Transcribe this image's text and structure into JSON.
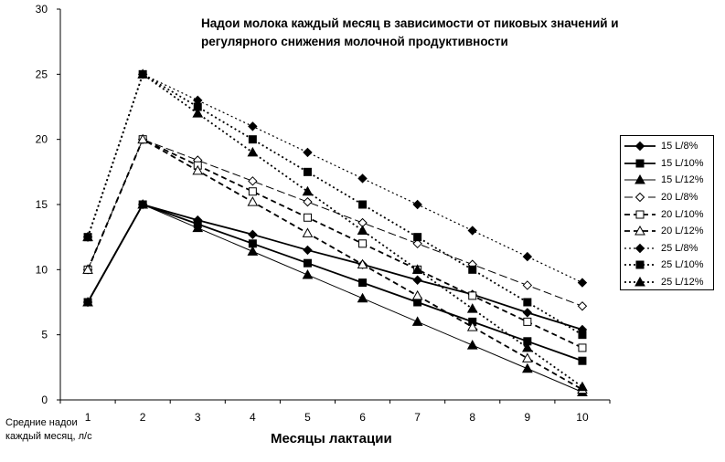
{
  "chart_data": {
    "type": "line",
    "title_lines": [
      "Надои молока каждый месяц в зависимости от пиковых значений и",
      "регулярного снижения молочной продуктивности"
    ],
    "xlabel": "Месяцы лактации",
    "ylabel_lines": [
      "Средние надои",
      "каждый месяц, л/с"
    ],
    "x": [
      1,
      2,
      3,
      4,
      5,
      6,
      7,
      8,
      9,
      10
    ],
    "xticks": [
      "1",
      "2",
      "3",
      "4",
      "5",
      "6",
      "7",
      "8",
      "9",
      "10"
    ],
    "ylim": [
      0,
      30
    ],
    "yticks": [
      "0",
      "5",
      "10",
      "15",
      "20",
      "25",
      "30"
    ],
    "grid": false,
    "legend_position": "right",
    "series": [
      {
        "name": "15 L/8%",
        "marker": "diamond",
        "filled": true,
        "line": "solid",
        "width": 1.8,
        "values": [
          7.5,
          15,
          13.8,
          12.7,
          11.5,
          10.4,
          9.2,
          8.1,
          6.7,
          5.4
        ]
      },
      {
        "name": "15 L/10%",
        "marker": "square",
        "filled": true,
        "line": "solid",
        "width": 1.8,
        "values": [
          7.5,
          15,
          13.5,
          12.0,
          10.5,
          9.0,
          7.5,
          6.0,
          4.5,
          3.0
        ]
      },
      {
        "name": "15 L/12%",
        "marker": "triangle",
        "filled": true,
        "line": "solid",
        "width": 1.0,
        "values": [
          7.5,
          15,
          13.2,
          11.4,
          9.6,
          7.8,
          6.0,
          4.2,
          2.4,
          0.6
        ]
      },
      {
        "name": "20 L/8%",
        "marker": "diamond",
        "filled": false,
        "line": "longdash",
        "width": 1.0,
        "values": [
          10,
          20,
          18.4,
          16.8,
          15.2,
          13.6,
          12.0,
          10.4,
          8.8,
          7.2
        ]
      },
      {
        "name": "20 L/10%",
        "marker": "square",
        "filled": false,
        "line": "dash",
        "width": 1.8,
        "values": [
          10,
          20,
          18,
          16,
          14,
          12,
          10,
          8,
          6,
          4
        ]
      },
      {
        "name": "20 L/12%",
        "marker": "triangle",
        "filled": false,
        "line": "dash",
        "width": 1.8,
        "values": [
          10,
          20,
          17.6,
          15.2,
          12.8,
          10.4,
          8.0,
          5.6,
          3.2,
          0.8
        ]
      },
      {
        "name": "25 L/8%",
        "marker": "diamond",
        "filled": true,
        "line": "dot",
        "width": 1.2,
        "values": [
          12.5,
          25,
          23,
          21,
          19,
          17,
          15,
          13,
          11,
          9
        ]
      },
      {
        "name": "25 L/10%",
        "marker": "square",
        "filled": true,
        "line": "dot",
        "width": 1.8,
        "values": [
          12.5,
          25,
          22.5,
          20,
          17.5,
          15,
          12.5,
          10,
          7.5,
          5
        ]
      },
      {
        "name": "25 L/12%",
        "marker": "triangle",
        "filled": true,
        "line": "dot",
        "width": 1.8,
        "values": [
          12.5,
          25,
          22,
          19,
          16,
          13,
          10,
          7,
          4,
          1
        ]
      }
    ]
  }
}
